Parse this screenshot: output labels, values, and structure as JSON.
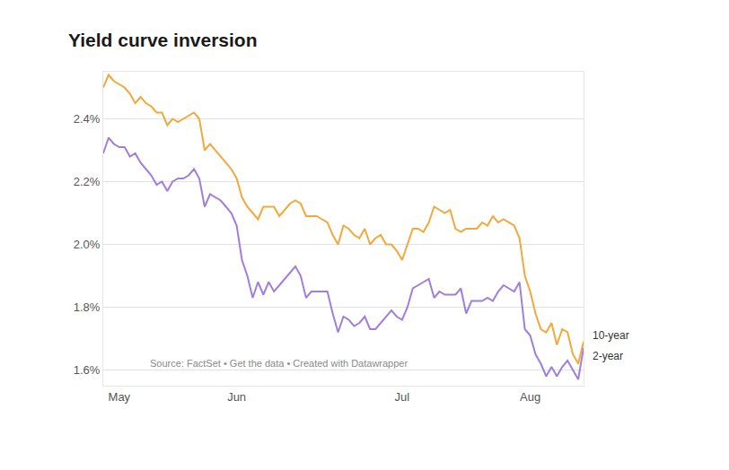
{
  "chart_data": {
    "type": "line",
    "title": "Yield curve inversion",
    "source": "Source: FactSet • Get the data • Created with Datawrapper",
    "categories": [
      null,
      null,
      null,
      "May",
      null,
      null,
      null,
      null,
      null,
      null,
      null,
      null,
      null,
      null,
      null,
      null,
      null,
      null,
      null,
      null,
      null,
      null,
      null,
      null,
      null,
      "Jun",
      null,
      null,
      null,
      null,
      null,
      null,
      null,
      null,
      null,
      null,
      null,
      null,
      null,
      null,
      null,
      null,
      null,
      null,
      null,
      null,
      null,
      null,
      null,
      null,
      null,
      null,
      null,
      null,
      null,
      null,
      "Jul",
      null,
      null,
      null,
      null,
      null,
      null,
      null,
      null,
      null,
      null,
      null,
      null,
      null,
      null,
      null,
      null,
      null,
      null,
      null,
      null,
      null,
      null,
      null,
      "Aug",
      null,
      null,
      null,
      null,
      null,
      null,
      null,
      null,
      null,
      null
    ],
    "series": [
      {
        "name": "10-year",
        "color": "#f2a93b",
        "line_style": "solid",
        "values": [
          2.5,
          2.54,
          2.52,
          2.51,
          2.5,
          2.48,
          2.45,
          2.47,
          2.45,
          2.44,
          2.42,
          2.42,
          2.38,
          2.4,
          2.39,
          2.4,
          2.41,
          2.42,
          2.4,
          2.3,
          2.32,
          2.3,
          2.28,
          2.26,
          2.24,
          2.21,
          2.15,
          2.12,
          2.1,
          2.08,
          2.12,
          2.12,
          2.12,
          2.09,
          2.11,
          2.13,
          2.14,
          2.13,
          2.09,
          2.09,
          2.09,
          2.08,
          2.07,
          2.03,
          2.0,
          2.06,
          2.05,
          2.03,
          2.02,
          2.05,
          2.0,
          2.02,
          2.03,
          2.0,
          2.0,
          1.98,
          1.95,
          2.0,
          2.05,
          2.05,
          2.04,
          2.07,
          2.12,
          2.11,
          2.1,
          2.11,
          2.05,
          2.04,
          2.05,
          2.05,
          2.05,
          2.07,
          2.06,
          2.09,
          2.07,
          2.08,
          2.07,
          2.06,
          2.02,
          1.9,
          1.85,
          1.78,
          1.73,
          1.72,
          1.75,
          1.68,
          1.73,
          1.72,
          1.65,
          1.62,
          1.69
        ]
      },
      {
        "name": "2-year",
        "color": "#a07fdc",
        "line_style": "solid",
        "values": [
          2.29,
          2.34,
          2.32,
          2.31,
          2.31,
          2.28,
          2.29,
          2.26,
          2.24,
          2.22,
          2.19,
          2.2,
          2.17,
          2.2,
          2.21,
          2.21,
          2.22,
          2.24,
          2.21,
          2.12,
          2.16,
          2.15,
          2.14,
          2.12,
          2.1,
          2.06,
          1.95,
          1.9,
          1.83,
          1.88,
          1.84,
          1.88,
          1.85,
          1.87,
          1.89,
          1.91,
          1.93,
          1.9,
          1.83,
          1.85,
          1.85,
          1.85,
          1.85,
          1.78,
          1.72,
          1.77,
          1.76,
          1.74,
          1.75,
          1.77,
          1.73,
          1.73,
          1.75,
          1.77,
          1.79,
          1.77,
          1.76,
          1.8,
          1.86,
          1.87,
          1.88,
          1.89,
          1.83,
          1.85,
          1.84,
          1.84,
          1.84,
          1.86,
          1.78,
          1.82,
          1.82,
          1.82,
          1.83,
          1.82,
          1.85,
          1.87,
          1.86,
          1.85,
          1.88,
          1.73,
          1.71,
          1.65,
          1.62,
          1.58,
          1.61,
          1.58,
          1.61,
          1.63,
          1.6,
          1.57,
          1.67
        ]
      }
    ],
    "ylim": [
      1.55,
      2.55
    ],
    "yticks": [
      {
        "value": 1.6,
        "label": "1.6%"
      },
      {
        "value": 1.8,
        "label": "1.8%"
      },
      {
        "value": 2.0,
        "label": "2.0%"
      },
      {
        "value": 2.2,
        "label": "2.2%"
      },
      {
        "value": 2.4,
        "label": "2.4%"
      }
    ],
    "grid": true
  }
}
